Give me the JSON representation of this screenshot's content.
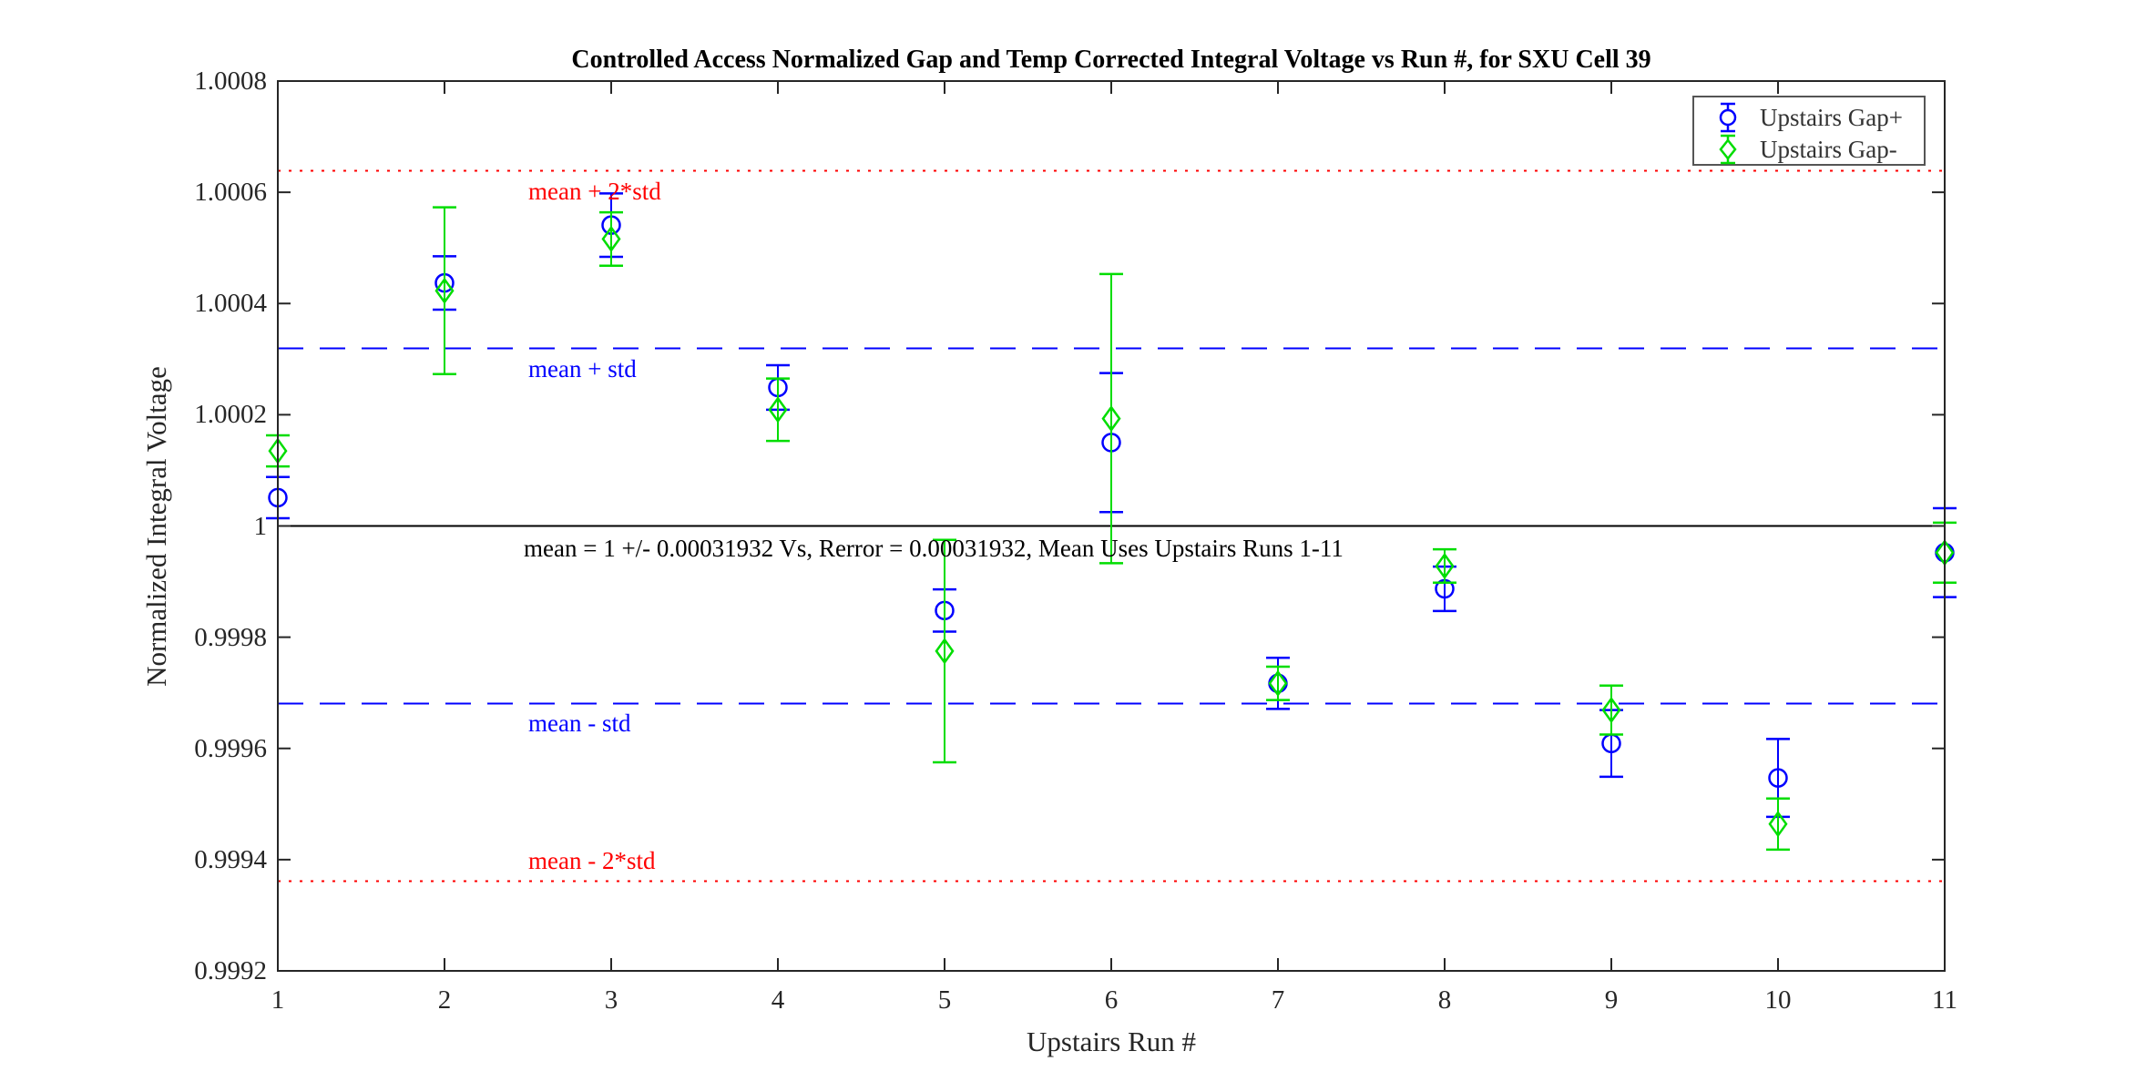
{
  "chart_data": {
    "type": "scatter",
    "title": "Controlled Access Normalized Gap and Temp Corrected Integral Voltage vs Run #, for SXU Cell 39",
    "xlabel": "Upstairs Run #",
    "ylabel": "Normalized Integral Voltage",
    "xlim": [
      1,
      11
    ],
    "ylim": [
      0.9992,
      1.0008
    ],
    "xticks": [
      1,
      2,
      3,
      4,
      5,
      6,
      7,
      8,
      9,
      10,
      11
    ],
    "yticks": [
      0.9992,
      0.9994,
      0.9996,
      0.9998,
      1,
      1.0002,
      1.0004,
      1.0006,
      1.0008
    ],
    "ytick_labels": [
      "0.9992",
      "0.9994",
      "0.9996",
      "0.9998",
      "1",
      "1.0002",
      "1.0004",
      "1.0006",
      "1.0008"
    ],
    "x": [
      1,
      2,
      3,
      4,
      5,
      6,
      7,
      8,
      9,
      10,
      11
    ],
    "series": [
      {
        "name": "Upstairs Gap+",
        "marker": "circle",
        "color": "#0000ff",
        "values": [
          1.000051,
          1.000437,
          1.000541,
          1.000249,
          0.999848,
          1.00015,
          0.999717,
          0.999887,
          0.999609,
          0.999547,
          0.999952
        ],
        "errors": [
          3.7e-05,
          4.8e-05,
          5.7e-05,
          4e-05,
          3.8e-05,
          0.000125,
          4.6e-05,
          4e-05,
          6e-05,
          7e-05,
          8e-05
        ]
      },
      {
        "name": "Upstairs Gap-",
        "marker": "diamond",
        "color": "#00dd00",
        "values": [
          1.000135,
          1.000423,
          1.000516,
          1.000209,
          0.999775,
          1.000193,
          0.999717,
          0.999928,
          0.999669,
          0.999464,
          0.999952
        ],
        "errors": [
          2.8e-05,
          0.00015,
          4.8e-05,
          5.6e-05,
          0.0002,
          0.00026,
          3e-05,
          3e-05,
          4.4e-05,
          4.6e-05,
          5.4e-05
        ]
      }
    ],
    "mean": 1,
    "std": 0.00031932,
    "reference_lines": [
      {
        "label": "mean + 2*std",
        "value": 1.00063864,
        "style": "dotted",
        "color": "#ff0000",
        "label_below": true
      },
      {
        "label": "mean + std",
        "value": 1.00031932,
        "style": "dashed",
        "color": "#0000ff",
        "label_below": true
      },
      {
        "label": "mean",
        "value": 1,
        "style": "solid",
        "color": "#000000",
        "label_below": true
      },
      {
        "label": "mean - std",
        "value": 0.99968068,
        "style": "dashed",
        "color": "#0000ff",
        "label_below": true
      },
      {
        "label": "mean - 2*std",
        "value": 0.99936136,
        "style": "dotted",
        "color": "#ff0000",
        "label_below": false
      }
    ],
    "annotation": "mean = 1 +/- 0.00031932 Vs, Rerror = 0.00031932, Mean Uses Upstairs Runs 1-11",
    "legend": {
      "position": "top-right",
      "entries": [
        "Upstairs Gap+",
        "Upstairs Gap-"
      ]
    },
    "grid": false,
    "axis_color": "#262626",
    "background": "#ffffff"
  }
}
